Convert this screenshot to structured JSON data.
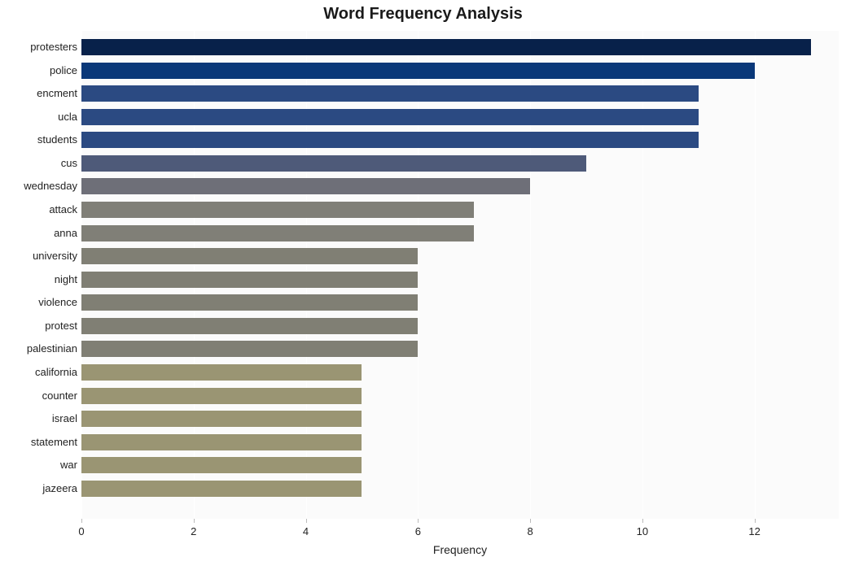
{
  "chart": {
    "type": "bar",
    "orientation": "horizontal",
    "title": "Word Frequency Analysis",
    "title_fontsize": 20,
    "title_fontweight": "bold",
    "title_color": "#1a1a1a",
    "xlabel": "Frequency",
    "xlabel_fontsize": 14,
    "label_fontsize": 13,
    "background_color": "#ffffff",
    "plot_background": "#fbfbfb",
    "grid_color": "#ffffff",
    "xlim": [
      0,
      13.5
    ],
    "xtick_step": 2,
    "xticks": [
      0,
      2,
      4,
      6,
      8,
      10,
      12
    ],
    "bar_width": 0.7,
    "categories": [
      "protesters",
      "police",
      "encment",
      "ucla",
      "students",
      "cus",
      "wednesday",
      "attack",
      "anna",
      "university",
      "night",
      "violence",
      "protest",
      "palestinian",
      "california",
      "counter",
      "israel",
      "statement",
      "war",
      "jazeera"
    ],
    "values": [
      13,
      12,
      11,
      11,
      11,
      9,
      8,
      7,
      7,
      6,
      6,
      6,
      6,
      6,
      5,
      5,
      5,
      5,
      5,
      5
    ],
    "bar_colors": [
      "#08214a",
      "#0a3879",
      "#2b4a82",
      "#2b4a82",
      "#2b4a82",
      "#4e5a79",
      "#6e6f78",
      "#807f77",
      "#807f77",
      "#807f74",
      "#807f74",
      "#807f74",
      "#807f74",
      "#807f74",
      "#9a9573",
      "#9a9573",
      "#9a9573",
      "#9a9573",
      "#9a9573",
      "#9a9573"
    ],
    "ylabel_color": "#222222",
    "tick_color": "#222222"
  }
}
